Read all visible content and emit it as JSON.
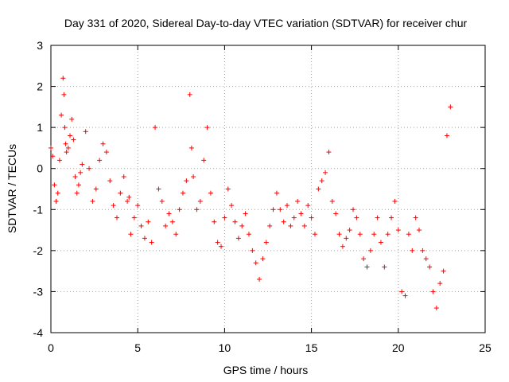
{
  "chart_data": {
    "type": "scatter",
    "title": "Day 331 of 2020, Sidereal Day-to-day VTEC variation (SDTVAR) for receiver chur",
    "xlabel": "GPS time / hours",
    "ylabel": "SDTVAR / TECUs",
    "xlim": [
      0,
      25
    ],
    "ylim": [
      -4,
      3
    ],
    "xticks": [
      0,
      5,
      10,
      15,
      20,
      25
    ],
    "yticks": [
      -4,
      -3,
      -2,
      -1,
      0,
      1,
      2,
      3
    ],
    "grid": true,
    "marker": "+",
    "series": [
      {
        "name": "SDTVAR",
        "color": "#ff0000",
        "x": [
          0.0,
          0.1,
          0.2,
          0.3,
          0.4,
          0.5,
          0.6,
          0.7,
          0.75,
          0.8,
          0.85,
          0.9,
          1.0,
          1.1,
          1.2,
          1.3,
          1.4,
          1.5,
          1.6,
          1.7,
          1.8,
          2.0,
          2.2,
          2.4,
          2.6,
          2.8,
          3.0,
          3.2,
          3.4,
          3.6,
          3.8,
          4.0,
          4.2,
          4.4,
          4.5,
          4.6,
          4.8,
          5.0,
          5.2,
          5.4,
          5.6,
          5.8,
          6.0,
          6.2,
          6.4,
          6.6,
          6.8,
          7.0,
          7.2,
          7.4,
          7.6,
          7.8,
          8.0,
          8.1,
          8.2,
          8.4,
          8.6,
          8.8,
          9.0,
          9.2,
          9.4,
          9.6,
          9.8,
          10.0,
          10.2,
          10.4,
          10.6,
          10.8,
          11.0,
          11.2,
          11.4,
          11.6,
          11.8,
          12.0,
          12.2,
          12.4,
          12.6,
          12.8,
          13.0,
          13.2,
          13.4,
          13.6,
          13.8,
          14.0,
          14.2,
          14.4,
          14.6,
          14.8,
          15.0,
          15.2,
          15.4,
          15.6,
          15.8,
          16.0,
          16.2,
          16.4,
          16.6,
          16.8,
          17.0,
          17.2,
          17.4,
          17.6,
          17.8,
          18.0,
          18.2,
          18.4,
          18.6,
          18.8,
          19.0,
          19.2,
          19.4,
          19.6,
          19.8,
          20.0,
          20.2,
          20.4,
          20.6,
          20.8,
          21.0,
          21.2,
          21.4,
          21.6,
          21.8,
          22.0,
          22.2,
          22.4,
          22.6,
          22.8,
          23.0
        ],
        "y": [
          0.5,
          0.3,
          -0.4,
          -0.8,
          -0.6,
          0.2,
          1.3,
          2.2,
          1.8,
          1.0,
          0.6,
          0.4,
          0.5,
          0.8,
          1.2,
          0.7,
          -0.2,
          -0.6,
          -0.4,
          -0.1,
          0.1,
          0.9,
          0.0,
          -0.8,
          -0.5,
          0.2,
          0.6,
          0.4,
          -0.3,
          -0.9,
          -1.2,
          -0.6,
          -0.2,
          -0.8,
          -0.7,
          -1.6,
          -1.2,
          -0.9,
          -1.4,
          -1.7,
          -1.3,
          -1.8,
          1.0,
          -0.5,
          -0.8,
          -1.4,
          -1.1,
          -1.3,
          -1.6,
          -1.0,
          -0.6,
          -0.3,
          1.8,
          0.5,
          -0.2,
          -1.0,
          -0.8,
          0.2,
          1.0,
          -0.6,
          -1.3,
          -1.8,
          -1.9,
          -1.2,
          -0.5,
          -0.9,
          -1.3,
          -1.7,
          -1.4,
          -1.1,
          -1.6,
          -2.0,
          -2.3,
          -2.7,
          -2.2,
          -1.8,
          -1.4,
          -1.0,
          -0.6,
          -1.0,
          -1.3,
          -0.9,
          -1.4,
          -1.2,
          -0.8,
          -1.1,
          -1.4,
          -0.9,
          -1.2,
          -1.6,
          -0.5,
          -0.3,
          -0.1,
          0.4,
          -0.8,
          -1.1,
          -1.6,
          -1.9,
          -1.7,
          -1.5,
          -1.0,
          -1.2,
          -1.6,
          -2.2,
          -2.4,
          -2.0,
          -1.6,
          -1.2,
          -1.8,
          -2.4,
          -1.6,
          -1.2,
          -0.8,
          -1.5,
          -3.0,
          -3.1,
          -1.6,
          -2.0,
          -1.2,
          -1.5,
          -2.0,
          -2.2,
          -2.4,
          -3.0,
          -3.4,
          -2.8,
          -2.5,
          0.8,
          1.5
        ]
      }
    ]
  }
}
